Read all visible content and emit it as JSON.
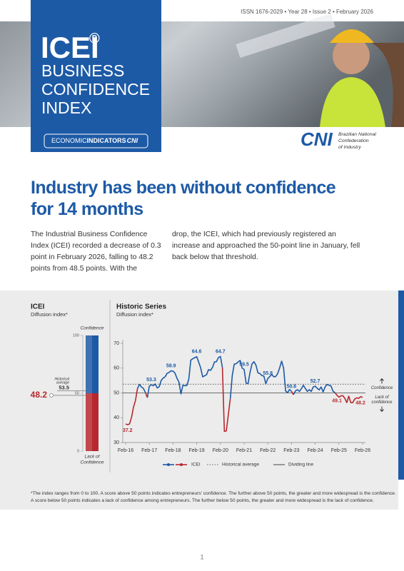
{
  "header": {
    "issn": "ISSN 1676-2029 • Year 28 • Issue 2 • February 2026",
    "brand": "ICEI",
    "brand_mark": "®",
    "title_lines": [
      "BUSINESS",
      "CONFIDENCE",
      "INDEX"
    ],
    "badge": {
      "first": "ECONOMIC",
      "second": "INDICATORS",
      "third": "CNI"
    },
    "org_logo": "CNI",
    "org_name": [
      "Brazilian National",
      "Confederation",
      "of Industry"
    ]
  },
  "article": {
    "headline_lines": [
      "Industry has been without confidence",
      "for 14 months"
    ],
    "columns": [
      "The Industrial Business Confidence Index (ICEI) recorded a decrease of 0.3 point in February 2026, falling to 48.2 points from 48.5 points. With the",
      "drop, the ICEI, which had previously registered an increase and approached the 50-point line in January, fell back below that threshold."
    ]
  },
  "gauge": {
    "title": "ICEI",
    "subtitle": "Diffusion index*",
    "value": 48.2,
    "ylim": [
      0,
      100
    ],
    "yticks": [
      0,
      50,
      100
    ],
    "top_label": "Confidence",
    "bottom_label": [
      "Lack of",
      "Confidence"
    ],
    "historical_average_label": [
      "Historical",
      "average"
    ],
    "historical_average": 53.5,
    "color_above": "#1d5aa6",
    "color_below": "#b7282e"
  },
  "chart_data": {
    "type": "line",
    "title": "Historic Series",
    "subtitle": "Diffusion index*",
    "categories": [
      "Feb-16",
      null,
      null,
      null,
      null,
      null,
      null,
      null,
      null,
      null,
      null,
      null,
      "Feb-17",
      null,
      null,
      null,
      null,
      null,
      null,
      null,
      null,
      null,
      null,
      null,
      "Feb-18",
      null,
      null,
      null,
      null,
      null,
      null,
      null,
      null,
      null,
      null,
      null,
      "Feb-19",
      null,
      null,
      null,
      null,
      null,
      null,
      null,
      null,
      null,
      null,
      null,
      "Feb-20",
      null,
      null,
      null,
      null,
      null,
      null,
      null,
      null,
      null,
      null,
      null,
      "Feb-21",
      null,
      null,
      null,
      null,
      null,
      null,
      null,
      null,
      null,
      null,
      null,
      "Feb-22",
      null,
      null,
      null,
      null,
      null,
      null,
      null,
      null,
      null,
      null,
      null,
      "Feb-23",
      null,
      null,
      null,
      null,
      null,
      null,
      null,
      null,
      null,
      null,
      null,
      "Feb-24",
      null,
      null,
      null,
      null,
      null,
      null,
      null,
      null,
      null,
      null,
      null,
      "Feb-25",
      null,
      null,
      null,
      null,
      null,
      null,
      null,
      null,
      null,
      null,
      null,
      "Feb-26"
    ],
    "series": [
      {
        "name": "ICEI",
        "color": "#1d5aa6",
        "below_color": "#b7282e",
        "values": [
          37.5,
          37.2,
          37.5,
          40.2,
          44.3,
          47.0,
          51.8,
          53.4,
          52.4,
          51.8,
          50.2,
          48.1,
          52.7,
          53.3,
          52.9,
          53.6,
          52.0,
          52.5,
          55.0,
          56.0,
          56.5,
          57.9,
          58.3,
          58.9,
          58.8,
          58.0,
          55.9,
          54.4,
          49.6,
          53.1,
          52.9,
          53.0,
          55.6,
          63.2,
          63.8,
          64.2,
          64.6,
          62.4,
          60.1,
          56.5,
          56.9,
          57.4,
          59.4,
          59.1,
          60.3,
          62.5,
          62.6,
          64.3,
          64.7,
          60.3,
          34.5,
          34.7,
          41.2,
          47.6,
          57.0,
          61.6,
          61.8,
          62.5,
          63.1,
          60.0,
          59.5,
          54.0,
          53.7,
          58.3,
          61.7,
          62.6,
          61.2,
          58.1,
          57.8,
          57.0,
          56.8,
          53.7,
          55.8,
          56.6,
          57.5,
          56.5,
          56.6,
          57.8,
          60.1,
          62.8,
          60.0,
          50.8,
          50.1,
          51.4,
          50.6,
          49.3,
          50.8,
          51.3,
          50.6,
          51.7,
          53.1,
          51.8,
          50.6,
          51.3,
          50.6,
          52.4,
          52.7,
          51.9,
          51.2,
          52.4,
          50.4,
          52.4,
          53.4,
          53.1,
          52.8,
          50.7,
          50.1,
          49.1,
          48.3,
          48.8,
          48.9,
          47.8,
          46.1,
          48.7,
          46.1,
          46.1,
          47.5,
          48.0,
          47.8,
          48.5,
          48.2
        ],
        "value_labels": [
          null,
          "37.2",
          null,
          null,
          null,
          null,
          null,
          null,
          null,
          null,
          null,
          null,
          null,
          "53.3",
          null,
          null,
          null,
          null,
          null,
          null,
          null,
          null,
          null,
          "58.9",
          null,
          null,
          null,
          null,
          null,
          null,
          null,
          null,
          null,
          null,
          null,
          null,
          "64.6",
          null,
          null,
          null,
          null,
          null,
          null,
          null,
          null,
          null,
          null,
          null,
          "64.7",
          null,
          null,
          null,
          null,
          null,
          null,
          null,
          null,
          null,
          null,
          null,
          "59.5",
          null,
          null,
          null,
          null,
          null,
          null,
          null,
          null,
          null,
          null,
          null,
          "55.8",
          null,
          null,
          null,
          null,
          null,
          null,
          null,
          null,
          null,
          null,
          null,
          "50.6",
          null,
          null,
          null,
          null,
          null,
          null,
          null,
          null,
          null,
          null,
          null,
          "52.7",
          null,
          null,
          null,
          null,
          null,
          null,
          null,
          null,
          null,
          null,
          "49.1",
          null,
          null,
          null,
          null,
          null,
          null,
          null,
          null,
          null,
          null,
          null,
          null,
          "48.2"
        ]
      }
    ],
    "reference_lines": [
      {
        "name": "Historical average",
        "value": 53.5,
        "style": "dotted",
        "color": "#666666"
      },
      {
        "name": "Dividing line",
        "value": 50,
        "style": "solid",
        "color": "#444444"
      }
    ],
    "ylim": [
      30,
      70
    ],
    "yticks": [
      30,
      40,
      50,
      60,
      70
    ],
    "grid": false,
    "side_labels": {
      "above": "Confidence",
      "below": [
        "Lack of",
        "confidence"
      ]
    }
  },
  "footnote": [
    "*The index ranges from 0 to 100. A score above 50 points indicates entrepreneurs' confidence. The further above 50 points, the greater and more widespread is the confidence.",
    "A score below 50 points indicates a lack of confidence among entrepreneurs. The further below 50 points, the greater and more widespread is the lack of confidence."
  ],
  "page_number": "1"
}
